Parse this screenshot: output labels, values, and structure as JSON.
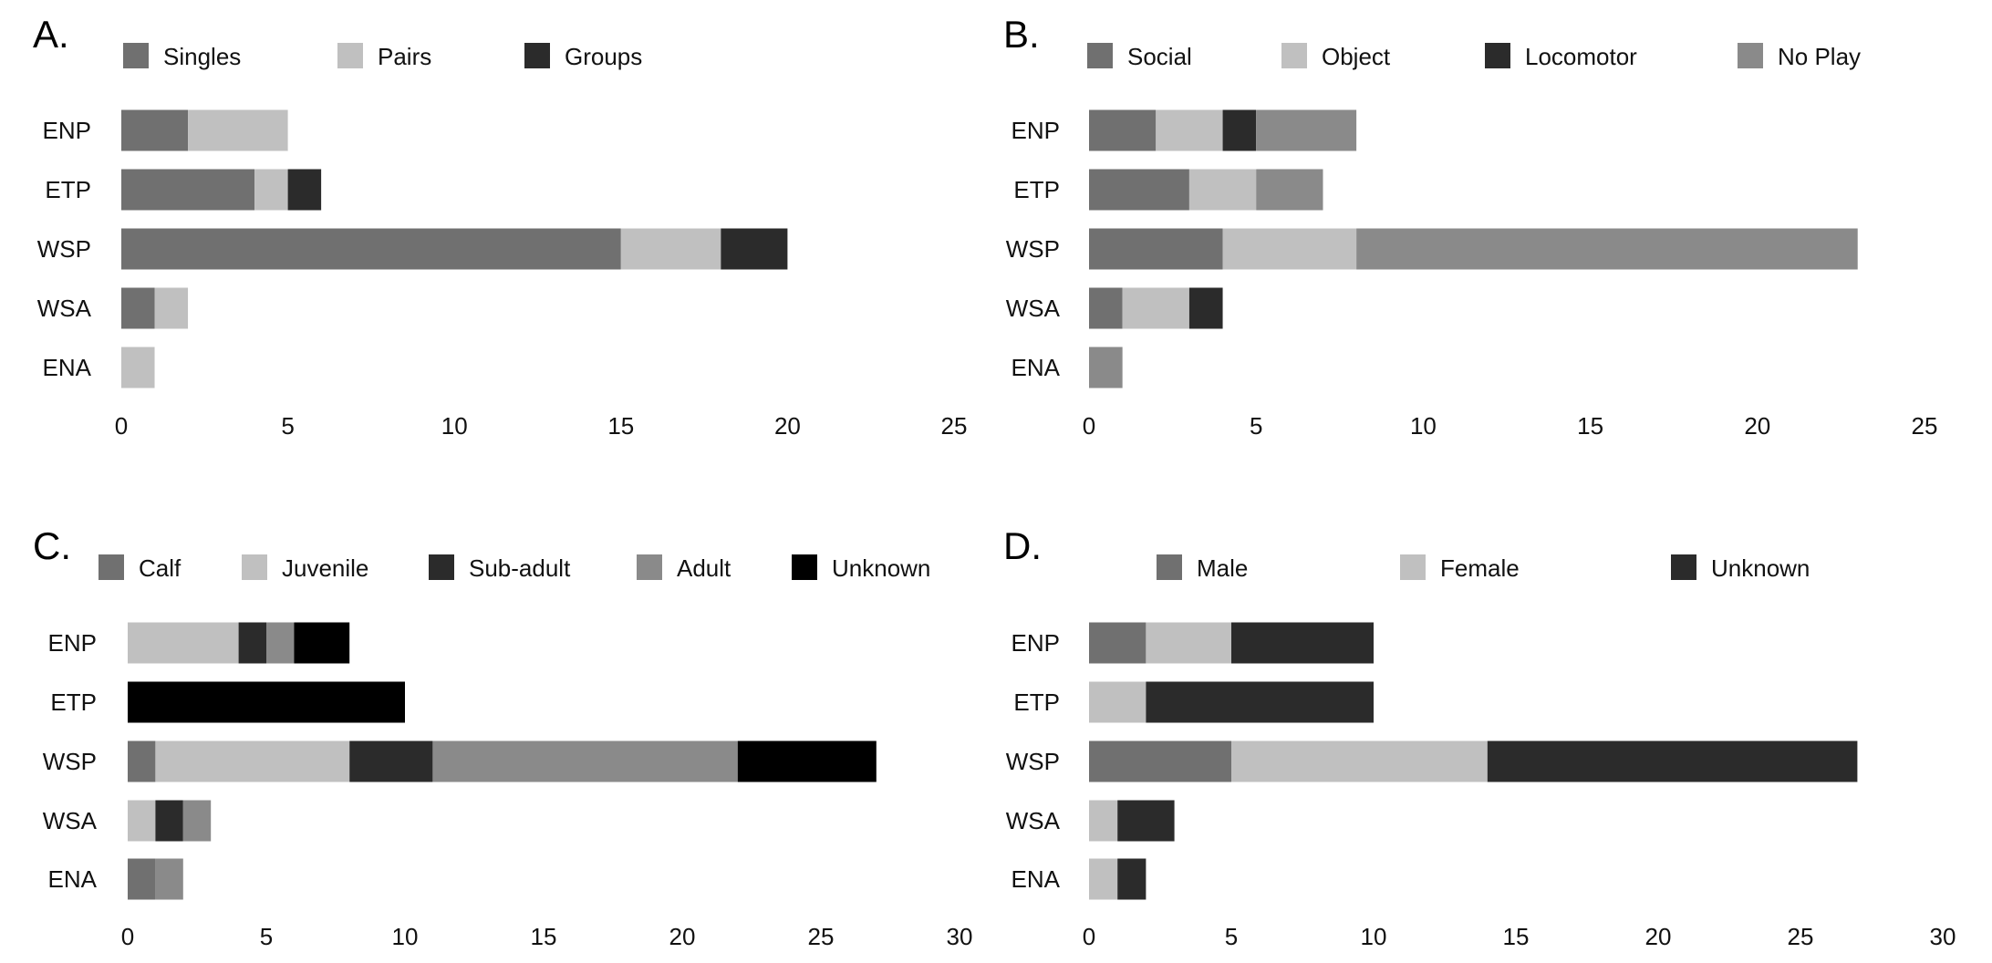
{
  "chart_data": [
    {
      "type": "bar",
      "orientation": "horizontal",
      "stacked": true,
      "panel_label": "A.",
      "categories": [
        "ENP",
        "ETP",
        "WSP",
        "WSA",
        "ENA"
      ],
      "series": [
        {
          "name": "Singles",
          "color": "#707070",
          "values": [
            2,
            4,
            15,
            1,
            0
          ]
        },
        {
          "name": "Pairs",
          "color": "#c0c0c0",
          "values": [
            3,
            1,
            3,
            1,
            1
          ]
        },
        {
          "name": "Groups",
          "color": "#2b2b2b",
          "values": [
            0,
            1,
            2,
            0,
            0
          ]
        }
      ],
      "xlim": [
        0,
        25
      ],
      "xticks": [
        "0",
        "5",
        "10",
        "15",
        "20",
        "25"
      ],
      "grid": false,
      "legend": "top"
    },
    {
      "type": "bar",
      "orientation": "horizontal",
      "stacked": true,
      "panel_label": "B.",
      "categories": [
        "ENP",
        "ETP",
        "WSP",
        "WSA",
        "ENA"
      ],
      "series": [
        {
          "name": "Social",
          "color": "#707070",
          "values": [
            2,
            3,
            4,
            1,
            0
          ]
        },
        {
          "name": "Object",
          "color": "#c0c0c0",
          "values": [
            2,
            2,
            4,
            2,
            0
          ]
        },
        {
          "name": "Locomotor",
          "color": "#2b2b2b",
          "values": [
            1,
            0,
            0,
            1,
            0
          ]
        },
        {
          "name": "No Play",
          "color": "#8a8a8a",
          "values": [
            3,
            2,
            15,
            0,
            1
          ]
        }
      ],
      "xlim": [
        0,
        25
      ],
      "xticks": [
        "0",
        "5",
        "10",
        "15",
        "20",
        "25"
      ],
      "grid": false,
      "legend": "top"
    },
    {
      "type": "bar",
      "orientation": "horizontal",
      "stacked": true,
      "panel_label": "C.",
      "categories": [
        "ENP",
        "ETP",
        "WSP",
        "WSA",
        "ENA"
      ],
      "series": [
        {
          "name": "Calf",
          "color": "#707070",
          "values": [
            0,
            0,
            1,
            0,
            1
          ]
        },
        {
          "name": "Juvenile",
          "color": "#c0c0c0",
          "values": [
            4,
            0,
            7,
            1,
            0
          ]
        },
        {
          "name": "Sub-adult",
          "color": "#2b2b2b",
          "values": [
            1,
            0,
            3,
            1,
            0
          ]
        },
        {
          "name": "Adult",
          "color": "#8a8a8a",
          "values": [
            1,
            0,
            11,
            1,
            1
          ]
        },
        {
          "name": "Unknown",
          "color": "#000000",
          "values": [
            2,
            10,
            5,
            0,
            0
          ]
        }
      ],
      "xlim": [
        0,
        30
      ],
      "xticks": [
        "0",
        "5",
        "10",
        "15",
        "20",
        "25",
        "30"
      ],
      "grid": false,
      "legend": "top"
    },
    {
      "type": "bar",
      "orientation": "horizontal",
      "stacked": true,
      "panel_label": "D.",
      "categories": [
        "ENP",
        "ETP",
        "WSP",
        "WSA",
        "ENA"
      ],
      "series": [
        {
          "name": "Male",
          "color": "#707070",
          "values": [
            2,
            0,
            5,
            0,
            0
          ]
        },
        {
          "name": "Female",
          "color": "#c0c0c0",
          "values": [
            3,
            2,
            9,
            1,
            1
          ]
        },
        {
          "name": "Unknown",
          "color": "#2b2b2b",
          "values": [
            5,
            8,
            13,
            2,
            1
          ]
        }
      ],
      "xlim": [
        0,
        30
      ],
      "xticks": [
        "0",
        "5",
        "10",
        "15",
        "20",
        "25",
        "30"
      ],
      "grid": false,
      "legend": "top"
    }
  ]
}
